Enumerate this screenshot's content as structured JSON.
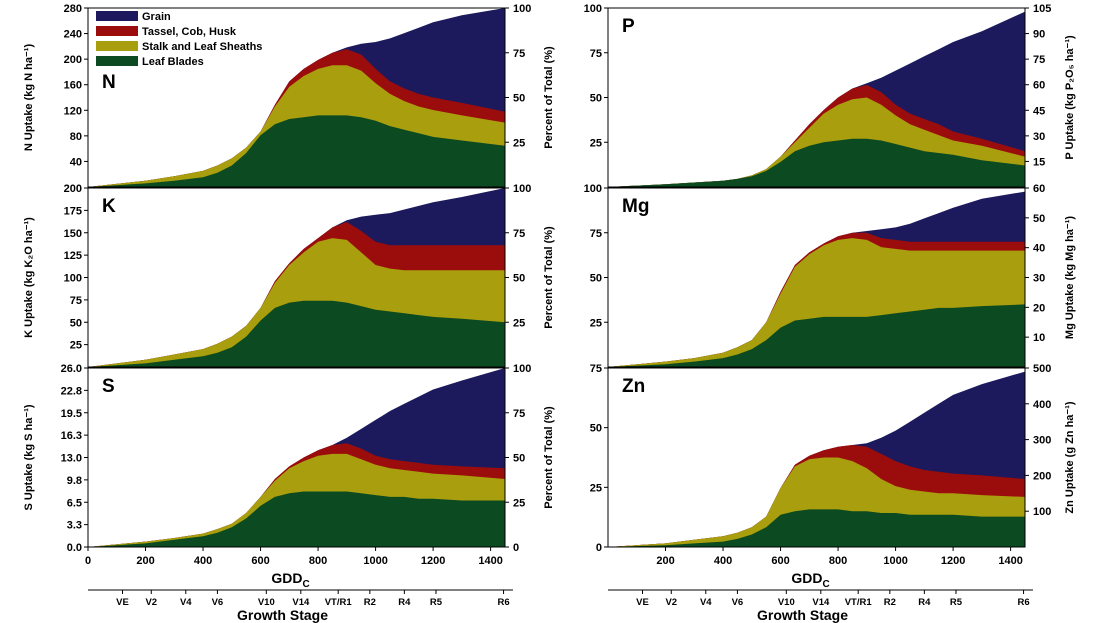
{
  "chart_data": {
    "type": "area",
    "stacked": true,
    "series_names": [
      "Grain",
      "Tassel, Cob, Husk",
      "Stalk and Leaf Sheaths",
      "Leaf Blades"
    ],
    "colors": {
      "Grain": "#1c1a5c",
      "Tassel, Cob, Husk": "#9b0c0c",
      "Stalk and Leaf Sheaths": "#a99e0d",
      "Leaf Blades": "#0c4a21"
    },
    "x_label": "GDD",
    "x_label_sub": "C",
    "x_range": [
      0,
      1450
    ],
    "x_ticks": [
      "0",
      "200",
      "400",
      "600",
      "800",
      "1000",
      "1200",
      "1400"
    ],
    "x_tick_values": [
      0,
      200,
      400,
      600,
      800,
      1000,
      1200,
      1400
    ],
    "growth_stage_label": "Growth Stage",
    "growth_stages": [
      {
        "label": "VE",
        "gdd": 120
      },
      {
        "label": "V2",
        "gdd": 220
      },
      {
        "label": "V4",
        "gdd": 340
      },
      {
        "label": "V6",
        "gdd": 450
      },
      {
        "label": "V10",
        "gdd": 620
      },
      {
        "label": "V14",
        "gdd": 740
      },
      {
        "label": "VT/R1",
        "gdd": 870
      },
      {
        "label": "R2",
        "gdd": 980
      },
      {
        "label": "R4",
        "gdd": 1100
      },
      {
        "label": "R5",
        "gdd": 1210
      },
      {
        "label": "R6",
        "gdd": 1445
      }
    ],
    "gdd_x": [
      0,
      200,
      300,
      400,
      450,
      500,
      550,
      600,
      650,
      700,
      750,
      800,
      850,
      900,
      950,
      1000,
      1050,
      1100,
      1150,
      1200,
      1300,
      1450
    ],
    "percent_axis_label": "Percent of Total (%)",
    "percent_ticks": [
      "0",
      "25",
      "50",
      "75",
      "100"
    ],
    "panels": [
      {
        "nutrient": "N",
        "left_axis_label": "N Uptake (kg N ha⁻¹)",
        "left_ticks": [
          "40",
          "80",
          "120",
          "160",
          "200",
          "240",
          "280"
        ],
        "right_ticks": [
          "25",
          "50",
          "75",
          "100"
        ],
        "show_legend": true,
        "total_percent": [
          0,
          3.5,
          6,
          9,
          12,
          16,
          22,
          31,
          46,
          59,
          66,
          71,
          75,
          78,
          80,
          81,
          83,
          86,
          89,
          92,
          96,
          100
        ],
        "cumulative_percent": {
          "Leaf Blades": [
            0,
            2,
            3.5,
            5.5,
            8,
            12,
            19,
            29,
            35,
            38,
            39,
            40,
            40,
            40,
            39,
            37,
            34,
            32,
            30,
            28,
            26,
            23
          ],
          "Stalk and Leaf Sheaths": [
            0,
            3.5,
            6,
            9,
            12,
            16,
            22,
            31,
            45,
            56,
            62,
            66,
            68,
            68,
            65,
            58,
            52,
            48,
            45,
            43,
            40,
            36
          ],
          "Tassel, Cob, Husk": [
            0,
            3.5,
            6,
            9,
            12,
            16,
            22,
            31,
            46,
            59,
            66,
            71,
            75,
            77,
            74,
            66,
            59,
            55,
            52,
            50,
            47,
            42
          ]
        }
      },
      {
        "nutrient": "P",
        "left_axis_label": "Percent of Total (%)",
        "right_axis_label": "P Uptake (kg P₂O₅ ha⁻¹)",
        "left_ticks": [
          "25",
          "50",
          "75",
          "100"
        ],
        "right_ticks": [
          "15",
          "30",
          "45",
          "60",
          "75",
          "90",
          "105"
        ],
        "total_percent": [
          0,
          1.5,
          2.5,
          3.5,
          4.5,
          6.5,
          10,
          17,
          26,
          35,
          43,
          50,
          55,
          58,
          61,
          65,
          69,
          73,
          77,
          81,
          87,
          98
        ],
        "cumulative_percent": {
          "Leaf Blades": [
            0,
            1.5,
            2.5,
            3.5,
            4.5,
            6,
            9,
            14,
            20,
            23,
            25,
            26,
            27,
            27,
            26,
            24,
            22,
            20,
            19,
            18,
            15,
            12
          ],
          "Stalk and Leaf Sheaths": [
            0,
            1.5,
            2.5,
            3.5,
            4.5,
            6.5,
            10,
            17,
            25,
            33,
            41,
            46,
            49,
            50,
            46,
            40,
            35,
            32,
            29,
            26,
            23,
            17
          ],
          "Tassel, Cob, Husk": [
            0,
            1.5,
            2.5,
            3.5,
            4.5,
            6.5,
            10,
            17,
            26,
            35,
            43,
            50,
            55,
            57,
            53,
            46,
            41,
            38,
            35,
            31,
            27,
            20
          ]
        }
      },
      {
        "nutrient": "K",
        "left_axis_label": "K Uptake (kg K₂O ha⁻¹)",
        "left_ticks": [
          "25",
          "50",
          "75",
          "100",
          "125",
          "150",
          "175",
          "200"
        ],
        "right_ticks": [
          "25",
          "50",
          "75",
          "100"
        ],
        "total_percent": [
          0,
          4,
          7,
          10,
          13,
          17,
          23,
          33,
          48,
          58,
          66,
          72,
          78,
          82,
          84,
          85,
          86,
          88,
          90,
          92,
          95,
          100
        ],
        "cumulative_percent": {
          "Leaf Blades": [
            0,
            2,
            4,
            6,
            8,
            11,
            17,
            26,
            33,
            36,
            37,
            37,
            37,
            36,
            34,
            32,
            31,
            30,
            29,
            28,
            27,
            25
          ],
          "Stalk and Leaf Sheaths": [
            0,
            4,
            7,
            10,
            13,
            17,
            23,
            33,
            47,
            57,
            64,
            70,
            72,
            71,
            64,
            57,
            55,
            54,
            54,
            54,
            54,
            54
          ],
          "Tassel, Cob, Husk": [
            0,
            4,
            7,
            10,
            13,
            17,
            23,
            33,
            48,
            58,
            66,
            72,
            78,
            81,
            76,
            70,
            68,
            68,
            68,
            68,
            68,
            68
          ]
        }
      },
      {
        "nutrient": "Mg",
        "left_axis_label": "Percent of Total (%)",
        "right_axis_label": "Mg Uptake (kg Mg ha⁻¹)",
        "left_ticks": [
          "25",
          "50",
          "75",
          "100"
        ],
        "right_ticks": [
          "10",
          "20",
          "30",
          "40",
          "50",
          "60"
        ],
        "total_percent": [
          0,
          3,
          5,
          8,
          11,
          15,
          25,
          42,
          57,
          64,
          69,
          73,
          75,
          76,
          77,
          78,
          80,
          83,
          86,
          89,
          94,
          98
        ],
        "cumulative_percent": {
          "Leaf Blades": [
            0,
            1.5,
            3,
            5,
            7,
            10,
            15,
            22,
            26,
            27,
            28,
            28,
            28,
            28,
            29,
            30,
            31,
            32,
            33,
            33,
            34,
            35
          ],
          "Stalk and Leaf Sheaths": [
            0,
            3,
            5,
            8,
            11,
            15,
            25,
            41,
            56,
            63,
            68,
            71,
            72,
            71,
            67,
            66,
            65,
            65,
            65,
            65,
            65,
            65
          ],
          "Tassel, Cob, Husk": [
            0,
            3,
            5,
            8,
            11,
            15,
            25,
            42,
            57,
            64,
            69,
            73,
            75,
            75,
            72,
            71,
            70,
            70,
            70,
            70,
            70,
            70
          ]
        }
      },
      {
        "nutrient": "S",
        "left_axis_label": "S Uptake (kg S ha⁻¹)",
        "left_ticks": [
          "0.0",
          "3.3",
          "6.5",
          "9.8",
          "13.0",
          "16.3",
          "19.5",
          "22.8",
          "26.0"
        ],
        "right_ticks": [
          "0",
          "25",
          "50",
          "75",
          "100"
        ],
        "total_percent": [
          0,
          3,
          5,
          7.5,
          10,
          13,
          19,
          28,
          38,
          45,
          50,
          54,
          57,
          61,
          66,
          71,
          76,
          80,
          84,
          88,
          93,
          100
        ],
        "cumulative_percent": {
          "Leaf Blades": [
            0,
            2,
            4,
            6,
            8,
            11,
            16,
            23,
            28,
            30,
            31,
            31,
            31,
            31,
            30,
            29,
            28,
            28,
            27,
            27,
            26,
            26
          ],
          "Stalk and Leaf Sheaths": [
            0,
            3,
            5,
            7.5,
            10,
            13,
            19,
            28,
            37,
            44,
            48,
            51,
            52,
            52,
            49,
            46,
            44,
            43,
            42,
            41,
            40,
            38
          ],
          "Tassel, Cob, Husk": [
            0,
            3,
            5,
            7.5,
            10,
            13,
            19,
            28,
            38,
            45,
            50,
            54,
            57,
            58,
            55,
            51,
            49,
            48,
            47,
            46,
            45,
            44
          ]
        }
      },
      {
        "nutrient": "Zn",
        "left_axis_label": "Percent of Total (%)",
        "right_axis_label": "Zn Uptake (g Zn ha⁻¹)",
        "left_ticks": [
          "0",
          "25",
          "50",
          "75"
        ],
        "right_ticks": [
          "100",
          "200",
          "300",
          "400",
          "500"
        ],
        "x_ticks": [
          "200",
          "400",
          "600",
          "800",
          "1000",
          "1200",
          "1400"
        ],
        "total_percent": [
          0,
          2,
          4,
          6,
          8,
          11,
          17,
          33,
          46,
          51,
          54,
          56,
          57,
          58,
          61,
          65,
          70,
          75,
          80,
          85,
          91,
          98
        ],
        "cumulative_percent": {
          "Leaf Blades": [
            0,
            1,
            2,
            3,
            4.5,
            7,
            11,
            18,
            20,
            21,
            21,
            21,
            20,
            20,
            19,
            19,
            18,
            18,
            18,
            18,
            17,
            17
          ],
          "Stalk and Leaf Sheaths": [
            0,
            2,
            4,
            6,
            8,
            11,
            17,
            33,
            45,
            49,
            50,
            50,
            48,
            44,
            38,
            34,
            32,
            31,
            30,
            30,
            29,
            28
          ],
          "Tassel, Cob, Husk": [
            0,
            2,
            4,
            6,
            8,
            11,
            17,
            33,
            46,
            51,
            54,
            56,
            57,
            56,
            52,
            48,
            45,
            43,
            42,
            41,
            40,
            38
          ]
        }
      }
    ]
  }
}
